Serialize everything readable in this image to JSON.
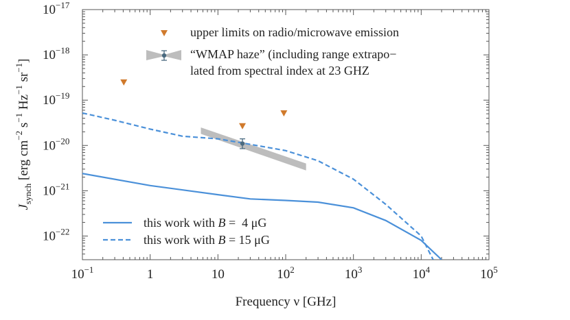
{
  "chart_data": {
    "type": "line",
    "xlabel": "Frequency ν [GHz]",
    "ylabel": {
      "symbol": "J",
      "subscript": "synch",
      "units": "[erg cm",
      "exp_cm": "−2",
      "s": "s",
      "exp_s": "−1",
      "hz": "Hz",
      "exp_hz": "−1",
      "sr": "sr",
      "exp_sr": "−1",
      "close": "]"
    },
    "x_scale": "log",
    "y_scale": "log",
    "xlim": [
      0.1,
      100000
    ],
    "ylim": [
      3e-23,
      1e-17
    ],
    "x_ticks": [
      {
        "value": 0.1,
        "base": "10",
        "exp": "−1"
      },
      {
        "value": 1,
        "base": "1",
        "exp": ""
      },
      {
        "value": 10,
        "base": "10",
        "exp": ""
      },
      {
        "value": 100,
        "base": "10",
        "exp": "2"
      },
      {
        "value": 1000,
        "base": "10",
        "exp": "3"
      },
      {
        "value": 10000,
        "base": "10",
        "exp": "4"
      },
      {
        "value": 100000,
        "base": "10",
        "exp": "5"
      }
    ],
    "y_ticks": [
      {
        "value": 1e-17,
        "base": "10",
        "exp": "−17"
      },
      {
        "value": 1e-18,
        "base": "10",
        "exp": "−18"
      },
      {
        "value": 1e-19,
        "base": "10",
        "exp": "−19"
      },
      {
        "value": 1e-20,
        "base": "10",
        "exp": "−20"
      },
      {
        "value": 1e-21,
        "base": "10",
        "exp": "−21"
      },
      {
        "value": 1e-22,
        "base": "10",
        "exp": "−22"
      }
    ],
    "series": [
      {
        "name": "this work with B = 4 μG",
        "legend_prefix": "this work with",
        "legend_var": "B",
        "legend_value": " =  4 ",
        "legend_unit": "μG",
        "style": "solid",
        "color": "#4a90d9",
        "points": [
          [
            0.1,
            2.4e-21
          ],
          [
            1,
            1.3e-21
          ],
          [
            10,
            8.2e-22
          ],
          [
            30,
            6.6e-22
          ],
          [
            100,
            6.1e-22
          ],
          [
            300,
            5.6e-22
          ],
          [
            1000,
            4.2e-22
          ],
          [
            3000,
            2.2e-22
          ],
          [
            10000,
            8e-23
          ],
          [
            20000,
            3e-23
          ]
        ]
      },
      {
        "name": "this work with B = 15 μG",
        "legend_prefix": "this work with",
        "legend_var": "B",
        "legend_value": " = 15 ",
        "legend_unit": "μG",
        "style": "dashed",
        "color": "#4a90d9",
        "points": [
          [
            0.1,
            5.2e-20
          ],
          [
            0.3,
            3.6e-20
          ],
          [
            1,
            2.3e-20
          ],
          [
            3,
            1.6e-20
          ],
          [
            10,
            1.4e-20
          ],
          [
            22,
            1.15e-20
          ],
          [
            100,
            7.7e-21
          ],
          [
            300,
            4.6e-21
          ],
          [
            1000,
            1.8e-21
          ],
          [
            3000,
            5e-22
          ],
          [
            10000,
            1e-22
          ],
          [
            15000,
            3e-23
          ]
        ]
      }
    ],
    "upper_limits": {
      "name": "upper limits on radio/microwave emission",
      "color": "#d07a2c",
      "points": [
        [
          0.408,
          2.5e-19
        ],
        [
          23,
          2.7e-20
        ],
        [
          94,
          5.2e-20
        ]
      ]
    },
    "wmap_haze": {
      "name_lines": [
        "“WMAP haze” (including range extrapo−",
        "lated from spectral index at 23 GHZ"
      ],
      "color": "#bdbdbd",
      "marker_color": "#4a6a80",
      "point": {
        "x": 23,
        "y": 1.1e-20,
        "y_low": 8.5e-21,
        "y_high": 1.4e-20
      },
      "band": {
        "upper": [
          [
            5.6,
            2.5e-20
          ],
          [
            200,
            4e-21
          ]
        ],
        "lower": [
          [
            5.6,
            1.8e-20
          ],
          [
            200,
            2.8e-21
          ]
        ]
      }
    }
  }
}
